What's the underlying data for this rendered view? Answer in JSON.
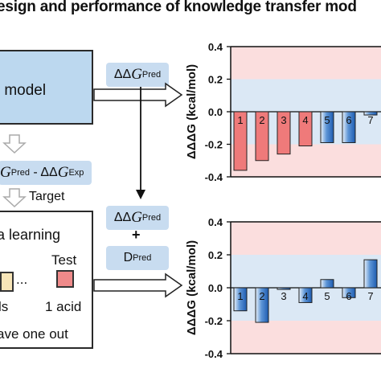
{
  "title": "esign and performance of knowledge transfer mod",
  "base_model_label": "se model",
  "pred_pill": {
    "symbol": "ΔΔ",
    "var": "G",
    "sub": "Pred"
  },
  "diff_pill": {
    "var": "G",
    "sub1": "Pred",
    "mid": " - ΔΔ",
    "var2": "G",
    "sub2": "Exp"
  },
  "target_label": "Target",
  "meta_learning_label": "a learning",
  "dots": "...",
  "train_label": "ls",
  "test_label": "Test",
  "test_sub": "1 acid",
  "leave_label": "ave one out",
  "combined_pred": {
    "symbol": "ΔΔ",
    "var": "G",
    "sub": "Pred"
  },
  "plus": "+",
  "dpred": {
    "main": "D",
    "sub": "Pred"
  },
  "colors": {
    "pill": "#c8dcf0",
    "base_box": "#bcd8ef",
    "band_red": "#fbdede",
    "band_blue": "#dbe8f5",
    "bar_red": "#ef7a7a",
    "bar_blue": "#2b6fc0",
    "test_square": "#ef8a8a",
    "train_square": "#f7e5b8"
  },
  "chart_data": [
    {
      "type": "bar",
      "ylabel": "ΔΔΔG (kcal/mol)",
      "ylim": [
        -0.4,
        0.4
      ],
      "yticks": [
        "-0.4",
        "-0.2",
        "0.0",
        "0.2",
        "0.4"
      ],
      "categories": [
        "1",
        "2",
        "3",
        "4",
        "5",
        "6",
        "7"
      ],
      "values": [
        -0.36,
        -0.3,
        -0.26,
        -0.21,
        -0.19,
        -0.19,
        -0.02
      ],
      "colors": [
        "red",
        "red",
        "red",
        "red",
        "blue",
        "blue",
        "blue"
      ]
    },
    {
      "type": "bar",
      "ylabel": "ΔΔΔG (kcal/mol)",
      "ylim": [
        -0.4,
        0.4
      ],
      "yticks": [
        "-0.4",
        "-0.2",
        "0.0",
        "0.2",
        "0.4"
      ],
      "categories": [
        "1",
        "2",
        "3",
        "4",
        "5",
        "6",
        "7"
      ],
      "values": [
        -0.14,
        -0.21,
        -0.01,
        -0.09,
        0.05,
        -0.06,
        0.17
      ],
      "colors": [
        "blue",
        "blue",
        "blue",
        "blue",
        "blue",
        "blue",
        "blue"
      ]
    }
  ]
}
